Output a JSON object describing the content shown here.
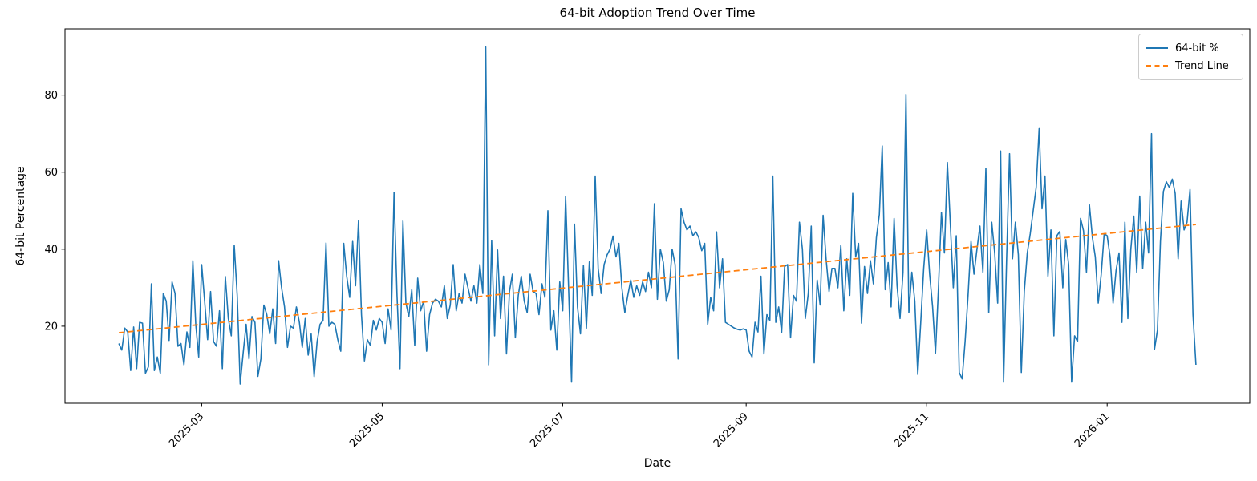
{
  "chart_data": {
    "type": "line",
    "title": "64-bit Adoption Trend Over Time",
    "xlabel": "Date",
    "ylabel": "64-bit Percentage",
    "x_start_date": "2025-02-01",
    "x_end_date": "2026-01-31",
    "frequency": "daily",
    "grid": false,
    "legend_position": "upper right",
    "tick_rotation": 45,
    "ylim": [
      0,
      97.2
    ],
    "xlim_days": [
      -18.2,
      382.2
    ],
    "yticks": [
      20,
      40,
      60,
      80
    ],
    "xticks": [
      {
        "day": 28,
        "label": "2025-03"
      },
      {
        "day": 89,
        "label": "2025-05"
      },
      {
        "day": 150,
        "label": "2025-07"
      },
      {
        "day": 212,
        "label": "2025-09"
      },
      {
        "day": 273,
        "label": "2025-11"
      },
      {
        "day": 334,
        "label": "2026-01"
      }
    ],
    "series": [
      {
        "name": "64-bit %",
        "color": "#1f77b4",
        "style": "solid",
        "values": [
          15.5,
          13.8,
          19.5,
          18.5,
          8.5,
          19.8,
          9.0,
          21.0,
          20.8,
          7.8,
          9.5,
          31.0,
          8.5,
          12.0,
          7.8,
          28.5,
          26.5,
          16.3,
          31.5,
          28.5,
          14.8,
          15.5,
          10.0,
          18.5,
          14.5,
          37.0,
          20.5,
          12.0,
          36.0,
          26.5,
          16.5,
          29.0,
          16.0,
          14.8,
          24.0,
          9.0,
          32.9,
          22.0,
          17.5,
          41.0,
          28.0,
          5.0,
          13.0,
          20.5,
          11.5,
          22.5,
          21.0,
          7.0,
          11.5,
          25.5,
          23.0,
          18.0,
          24.5,
          15.5,
          37.0,
          30.0,
          25.0,
          14.5,
          20.0,
          19.5,
          25.0,
          21.0,
          14.5,
          22.0,
          12.5,
          18.0,
          6.9,
          16.0,
          20.5,
          21.5,
          41.6,
          20.0,
          21.0,
          20.5,
          16.5,
          13.5,
          41.5,
          33.0,
          27.5,
          42.0,
          30.5,
          47.4,
          23.0,
          11.0,
          16.5,
          15.0,
          21.5,
          19.0,
          22.0,
          21.0,
          15.5,
          24.5,
          19.0,
          54.7,
          28.0,
          9.0,
          47.3,
          26.0,
          22.5,
          29.5,
          15.0,
          32.5,
          24.0,
          26.5,
          13.5,
          23.0,
          26.0,
          27.0,
          26.5,
          25.0,
          30.5,
          22.0,
          25.5,
          36.0,
          24.0,
          28.5,
          26.0,
          33.5,
          30.0,
          26.5,
          30.5,
          26.0,
          36.0,
          28.5,
          92.5,
          10.0,
          42.2,
          17.5,
          39.8,
          22.0,
          33.0,
          12.8,
          29.0,
          33.5,
          17.0,
          28.0,
          33.0,
          26.5,
          23.5,
          33.5,
          29.0,
          28.5,
          23.0,
          31.0,
          27.5,
          50.0,
          19.0,
          24.0,
          13.8,
          31.5,
          24.0,
          53.7,
          30.0,
          5.5,
          46.5,
          25.0,
          18.0,
          35.8,
          19.5,
          36.7,
          28.0,
          59.0,
          35.0,
          28.5,
          36.0,
          38.5,
          40.0,
          43.4,
          38.0,
          41.5,
          30.0,
          23.5,
          28.0,
          32.0,
          27.5,
          30.5,
          28.0,
          31.5,
          29.0,
          34.0,
          30.0,
          51.8,
          27.0,
          40.0,
          36.5,
          26.5,
          29.5,
          40.0,
          36.0,
          11.5,
          50.5,
          47.0,
          45.0,
          46.0,
          43.5,
          44.5,
          43.0,
          39.6,
          41.5,
          20.5,
          27.5,
          24.0,
          44.5,
          30.0,
          37.5,
          21.0,
          20.5,
          20.0,
          19.5,
          19.2,
          19.0,
          19.3,
          19.0,
          13.5,
          12.0,
          21.0,
          18.5,
          33.0,
          12.8,
          23.0,
          21.5,
          59.0,
          21.0,
          25.0,
          18.4,
          35.5,
          36.0,
          17.0,
          28.0,
          26.5,
          47.0,
          40.0,
          22.0,
          28.5,
          46.0,
          10.5,
          32.0,
          25.5,
          48.8,
          37.5,
          29.0,
          35.0,
          35.0,
          30.0,
          41.0,
          24.0,
          37.5,
          28.0,
          54.5,
          38.0,
          41.5,
          20.8,
          35.5,
          28.5,
          37.0,
          31.0,
          43.0,
          49.0,
          66.8,
          29.5,
          36.5,
          25.0,
          48.0,
          30.5,
          22.0,
          34.0,
          80.2,
          23.5,
          34.0,
          26.5,
          7.5,
          21.0,
          35.0,
          45.0,
          33.5,
          25.0,
          13.0,
          30.0,
          49.5,
          39.0,
          62.5,
          46.5,
          30.0,
          43.5,
          8.0,
          6.3,
          16.0,
          28.0,
          42.0,
          33.5,
          40.0,
          46.0,
          34.0,
          61.0,
          23.5,
          47.0,
          39.0,
          26.0,
          65.5,
          5.5,
          37.0,
          64.8,
          37.5,
          47.0,
          38.5,
          8.0,
          29.0,
          39.0,
          44.0,
          50.0,
          56.0,
          71.3,
          50.5,
          59.0,
          33.0,
          45.0,
          17.5,
          43.5,
          44.6,
          30.0,
          42.5,
          36.0,
          5.5,
          17.5,
          16.0,
          48.0,
          44.8,
          34.0,
          51.5,
          43.0,
          38.0,
          26.0,
          33.5,
          44.0,
          43.5,
          38.0,
          26.0,
          34.5,
          39.0,
          21.0,
          47.0,
          22.0,
          40.0,
          48.6,
          34.0,
          53.8,
          35.0,
          47.0,
          39.0,
          70.0,
          14.0,
          19.0,
          42.0,
          55.0,
          57.5,
          56.0,
          58.2,
          54.5,
          37.5,
          52.5,
          45.0,
          47.0,
          55.5,
          23.0,
          10.0
        ]
      },
      {
        "name": "Trend Line",
        "color": "#ff7f0e",
        "style": "dashed",
        "trend": {
          "start_value": 18.3,
          "end_value": 46.4,
          "start_day": 0,
          "end_day": 364
        }
      }
    ]
  }
}
